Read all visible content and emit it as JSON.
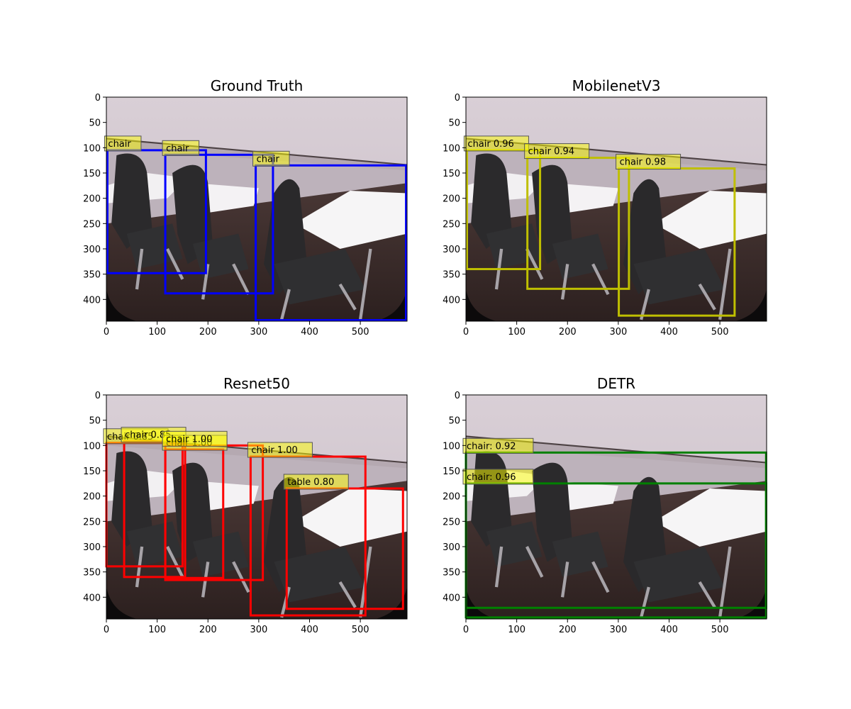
{
  "chart_data": [
    {
      "type": "image-detection",
      "title": "Ground Truth",
      "xlim": [
        0,
        592
      ],
      "ylim": [
        443,
        0
      ],
      "xticks": [
        0,
        100,
        200,
        300,
        400,
        500
      ],
      "yticks": [
        0,
        50,
        100,
        150,
        200,
        250,
        300,
        350,
        400
      ],
      "box_color": "#0000ff",
      "boxes": [
        {
          "label": "chair",
          "x0": 2,
          "y0": 105,
          "x1": 196,
          "y1": 348
        },
        {
          "label": "chair",
          "x0": 116,
          "y0": 114,
          "x1": 328,
          "y1": 388
        },
        {
          "label": "chair",
          "x0": 294,
          "y0": 135,
          "x1": 590,
          "y1": 441
        }
      ]
    },
    {
      "type": "image-detection",
      "title": "MobilenetV3",
      "xlim": [
        0,
        592
      ],
      "ylim": [
        443,
        0
      ],
      "xticks": [
        0,
        100,
        200,
        300,
        400,
        500
      ],
      "yticks": [
        0,
        50,
        100,
        150,
        200,
        250,
        300,
        350,
        400
      ],
      "box_color": "#bfbf00",
      "boxes": [
        {
          "label": "chair 0.96",
          "x0": 2,
          "y0": 105,
          "x1": 146,
          "y1": 340
        },
        {
          "label": "chair 0.94",
          "x0": 121,
          "y0": 120,
          "x1": 321,
          "y1": 379
        },
        {
          "label": "chair 0.98",
          "x0": 301,
          "y0": 141,
          "x1": 529,
          "y1": 432
        }
      ]
    },
    {
      "type": "image-detection",
      "title": "Resnet50",
      "xlim": [
        0,
        592
      ],
      "ylim": [
        443,
        0
      ],
      "xticks": [
        0,
        100,
        200,
        300,
        400,
        500
      ],
      "yticks": [
        0,
        50,
        100,
        150,
        200,
        250,
        300,
        350,
        400
      ],
      "box_color": "#ff0000",
      "boxes": [
        {
          "label": "chair 0.85",
          "x0": 0,
          "y0": 95,
          "x1": 150,
          "y1": 339
        },
        {
          "label": "chair 0.85",
          "x0": 35,
          "y0": 92,
          "x1": 155,
          "y1": 360
        },
        {
          "label": "chair 1.00",
          "x0": 116,
          "y0": 108,
          "x1": 230,
          "y1": 362
        },
        {
          "label": "chair 1.00",
          "x0": 116,
          "y0": 100,
          "x1": 308,
          "y1": 366
        },
        {
          "label": "chair 1.00",
          "x0": 284,
          "y0": 122,
          "x1": 510,
          "y1": 436
        },
        {
          "label": "table 0.80",
          "x0": 355,
          "y0": 185,
          "x1": 584,
          "y1": 423
        }
      ]
    },
    {
      "type": "image-detection",
      "title": "DETR",
      "xlim": [
        0,
        592
      ],
      "ylim": [
        443,
        0
      ],
      "xticks": [
        0,
        100,
        200,
        300,
        400,
        500
      ],
      "yticks": [
        0,
        50,
        100,
        150,
        200,
        250,
        300,
        350,
        400
      ],
      "box_color": "#008000",
      "boxes": [
        {
          "label": "chair: 0.92",
          "x0": 0,
          "y0": 114,
          "x1": 591,
          "y1": 421
        },
        {
          "label": "chair: 0.96",
          "x0": 0,
          "y0": 175,
          "x1": 591,
          "y1": 440
        }
      ]
    }
  ]
}
